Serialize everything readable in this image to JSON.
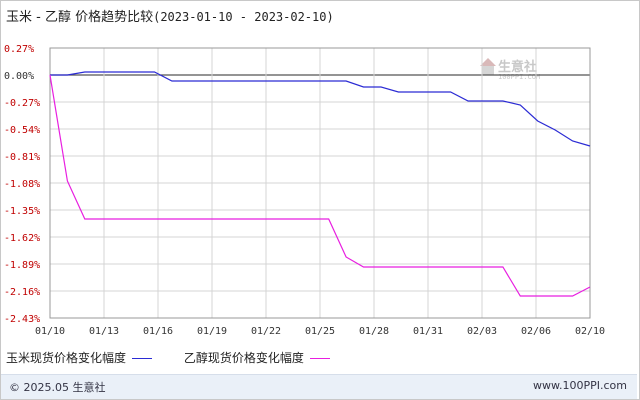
{
  "title": {
    "prefix": "玉米 - 乙醇 价格趋势比较",
    "range": "(2023-01-10 - 2023-02-10)"
  },
  "watermark": {
    "name": "生意社",
    "url": "100PPI.COM"
  },
  "legend": [
    {
      "label": "玉米现货价格变化幅度",
      "color": "#2b2bd4"
    },
    {
      "label": "乙醇现货价格变化幅度",
      "color": "#e81fe0"
    }
  ],
  "footer": {
    "left": "© 2025.05 生意社",
    "right": "www.100PPI.com"
  },
  "chart_data": {
    "type": "line",
    "x_tick_labels": [
      "01/10",
      "01/13",
      "01/16",
      "01/19",
      "01/22",
      "01/25",
      "01/28",
      "01/31",
      "02/03",
      "02/06",
      "02/10"
    ],
    "y_tick_labels": [
      "0.27%",
      "0.00%",
      "-0.27%",
      "-0.54%",
      "-0.81%",
      "-1.08%",
      "-1.35%",
      "-1.62%",
      "-1.89%",
      "-2.16%",
      "-2.43%"
    ],
    "ylim": [
      -2.43,
      0.27
    ],
    "x_range_days": [
      0,
      31
    ],
    "x": [
      0,
      1,
      2,
      3,
      4,
      5,
      6,
      7,
      8,
      9,
      10,
      11,
      12,
      13,
      14,
      15,
      16,
      17,
      18,
      19,
      20,
      21,
      22,
      23,
      24,
      25,
      26,
      27,
      28,
      29,
      30,
      31
    ],
    "series": [
      {
        "name": "玉米现货价格变化幅度",
        "color": "#2b2bd4",
        "values": [
          0,
          0,
          0.03,
          0.03,
          0.03,
          0.03,
          0.03,
          -0.06,
          -0.06,
          -0.06,
          -0.06,
          -0.06,
          -0.06,
          -0.06,
          -0.06,
          -0.06,
          -0.06,
          -0.06,
          -0.12,
          -0.12,
          -0.17,
          -0.17,
          -0.17,
          -0.17,
          -0.26,
          -0.26,
          -0.26,
          -0.3,
          -0.46,
          -0.55,
          -0.66,
          -0.71
        ]
      },
      {
        "name": "乙醇现货价格变化幅度",
        "color": "#e81fe0",
        "values": [
          0,
          -1.06,
          -1.44,
          -1.44,
          -1.44,
          -1.44,
          -1.44,
          -1.44,
          -1.44,
          -1.44,
          -1.44,
          -1.44,
          -1.44,
          -1.44,
          -1.44,
          -1.44,
          -1.44,
          -1.82,
          -1.92,
          -1.92,
          -1.92,
          -1.92,
          -1.92,
          -1.92,
          -1.92,
          -1.92,
          -1.92,
          -2.21,
          -2.21,
          -2.21,
          -2.21,
          -2.12
        ]
      }
    ],
    "grid": true
  }
}
